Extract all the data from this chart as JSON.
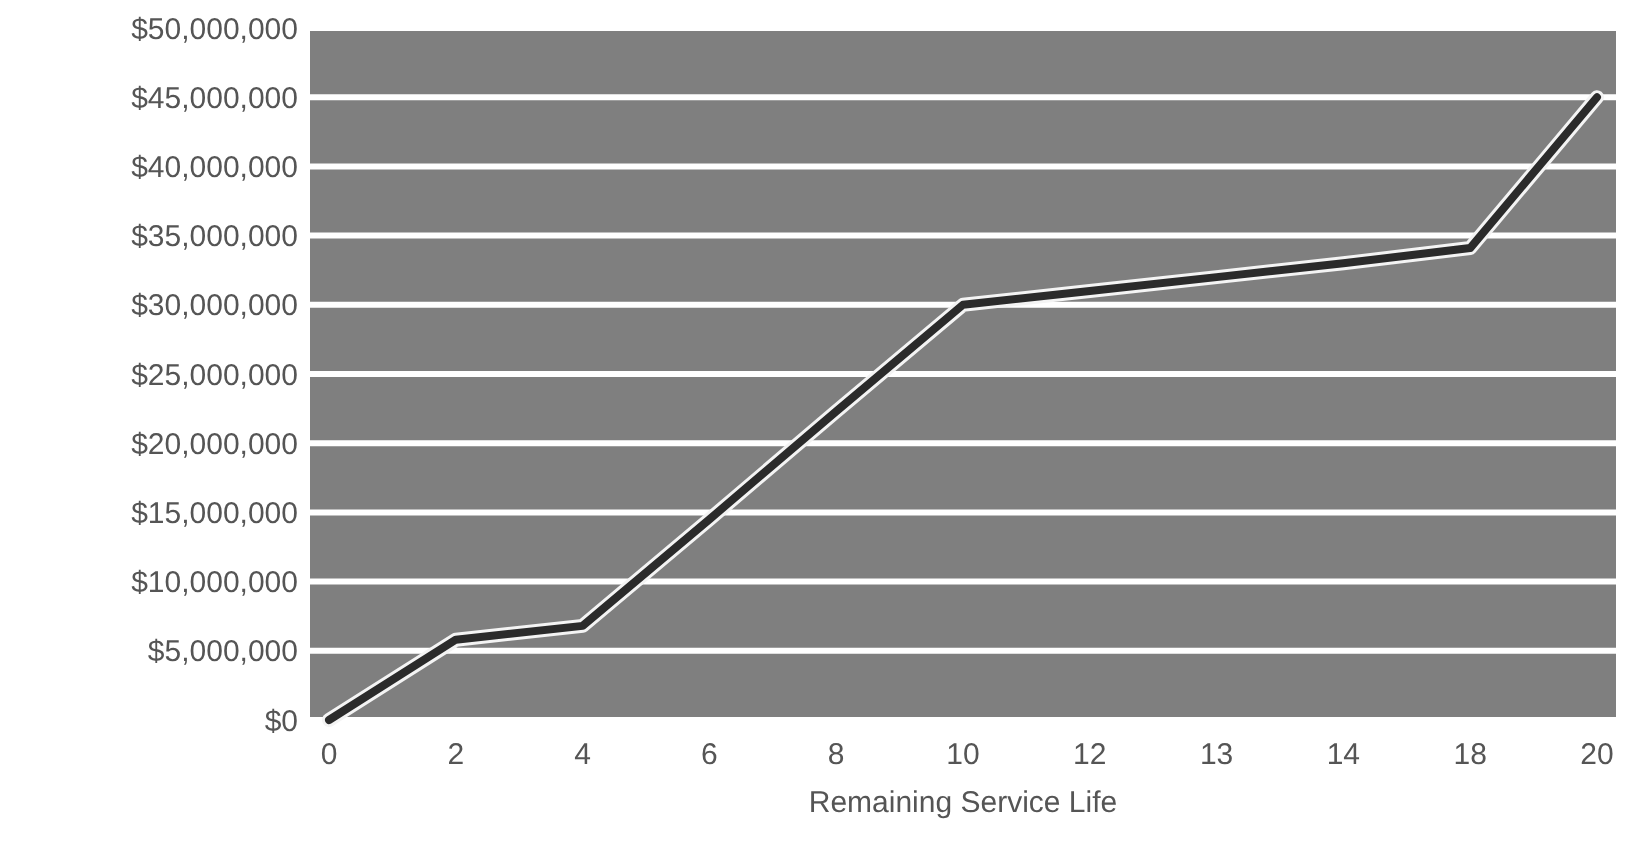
{
  "chart_data": {
    "type": "line",
    "xlabel": "Remaining Service Life",
    "categories": [
      "0",
      "2",
      "4",
      "6",
      "8",
      "10",
      "12",
      "13",
      "14",
      "18",
      "20"
    ],
    "series": [
      {
        "color": "#2b2b2b",
        "values": [
          0,
          5800000,
          6800000,
          14500000,
          22300000,
          30000000,
          31000000,
          32000000,
          33000000,
          34100000,
          45000000
        ]
      }
    ],
    "ylim": [
      0,
      50000000
    ],
    "yticks": [
      {
        "value": 0,
        "label": "$0"
      },
      {
        "value": 5000000,
        "label": "$5,000,000"
      },
      {
        "value": 10000000,
        "label": "$10,000,000"
      },
      {
        "value": 15000000,
        "label": "$15,000,000"
      },
      {
        "value": 20000000,
        "label": "$20,000,000"
      },
      {
        "value": 25000000,
        "label": "$25,000,000"
      },
      {
        "value": 30000000,
        "label": "$30,000,000"
      },
      {
        "value": 35000000,
        "label": "$35,000,000"
      },
      {
        "value": 40000000,
        "label": "$40,000,000"
      },
      {
        "value": 45000000,
        "label": "$45,000,000"
      },
      {
        "value": 50000000,
        "label": "$50,000,000"
      }
    ],
    "grid": "y",
    "marker": "none",
    "line_style": "solid"
  }
}
